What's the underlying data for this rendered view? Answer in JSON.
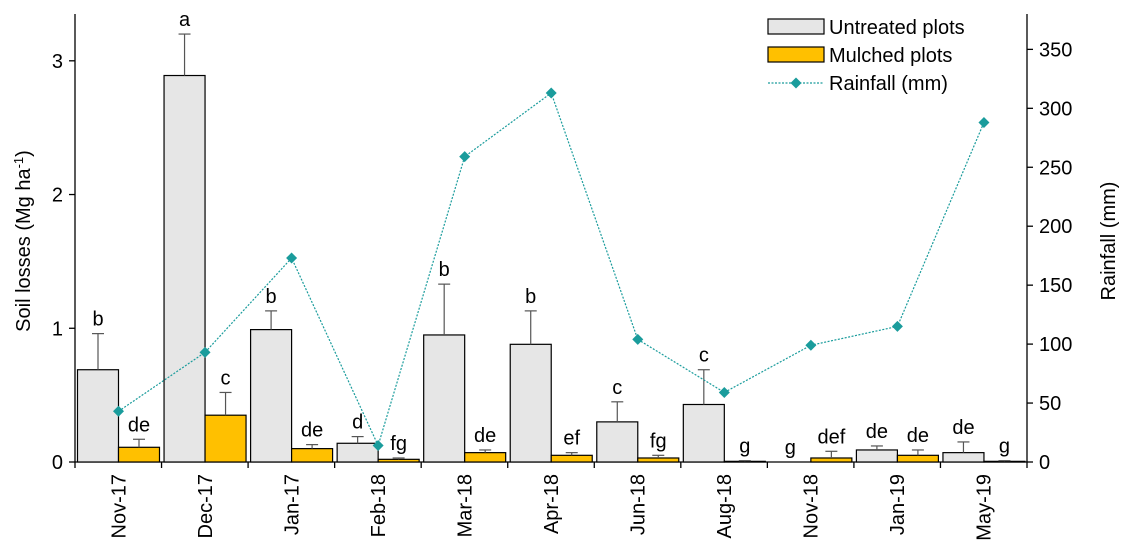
{
  "chart_data": {
    "type": "bar",
    "categories": [
      "Nov-17",
      "Dec-17",
      "Jan-17",
      "Feb-18",
      "Mar-18",
      "Apr-18",
      "Jun-18",
      "Aug-18",
      "Nov-18",
      "Jan-19",
      "May-19"
    ],
    "series": [
      {
        "name": "Untreated plots",
        "type": "bar",
        "axis": "left",
        "color": "#e6e6e6",
        "values": [
          0.69,
          2.89,
          0.99,
          0.14,
          0.95,
          0.88,
          0.3,
          0.43,
          0.0,
          0.09,
          0.07
        ],
        "error": [
          0.27,
          0.31,
          0.14,
          0.05,
          0.38,
          0.25,
          0.15,
          0.26,
          0.0,
          0.03,
          0.08
        ],
        "letters": [
          "b",
          "a",
          "b",
          "d",
          "b",
          "b",
          "c",
          "c",
          "g",
          "de",
          "de"
        ]
      },
      {
        "name": "Mulched plots",
        "type": "bar",
        "axis": "left",
        "color": "#ffc000",
        "values": [
          0.11,
          0.35,
          0.1,
          0.02,
          0.07,
          0.05,
          0.03,
          0.005,
          0.03,
          0.05,
          0.005
        ],
        "error": [
          0.06,
          0.17,
          0.03,
          0.01,
          0.02,
          0.02,
          0.02,
          0.005,
          0.05,
          0.04,
          0.005
        ],
        "letters": [
          "de",
          "c",
          "de",
          "fg",
          "de",
          "ef",
          "fg",
          "g",
          "def",
          "de",
          "g"
        ]
      },
      {
        "name": "Rainfall (mm)",
        "type": "line",
        "axis": "right",
        "color": "#1a9c9c",
        "values": [
          43,
          93,
          173,
          14,
          259,
          313,
          104,
          59,
          99,
          115,
          288
        ]
      }
    ],
    "ylabel": "Soil losses (Mg ha⁻¹)",
    "ylabel_parts": {
      "base": "Soil losses (Mg ha",
      "sup": "-1",
      "end": ")"
    },
    "ylim": [
      0,
      3.35
    ],
    "yticks": [
      "0",
      "1",
      "2",
      "3"
    ],
    "y2label": "Rainfall (mm)",
    "y2lim": [
      0,
      380
    ],
    "y2ticks": [
      "0",
      "50",
      "100",
      "150",
      "200",
      "250",
      "300",
      "350"
    ],
    "grid": false,
    "legend_position": "top-right"
  }
}
